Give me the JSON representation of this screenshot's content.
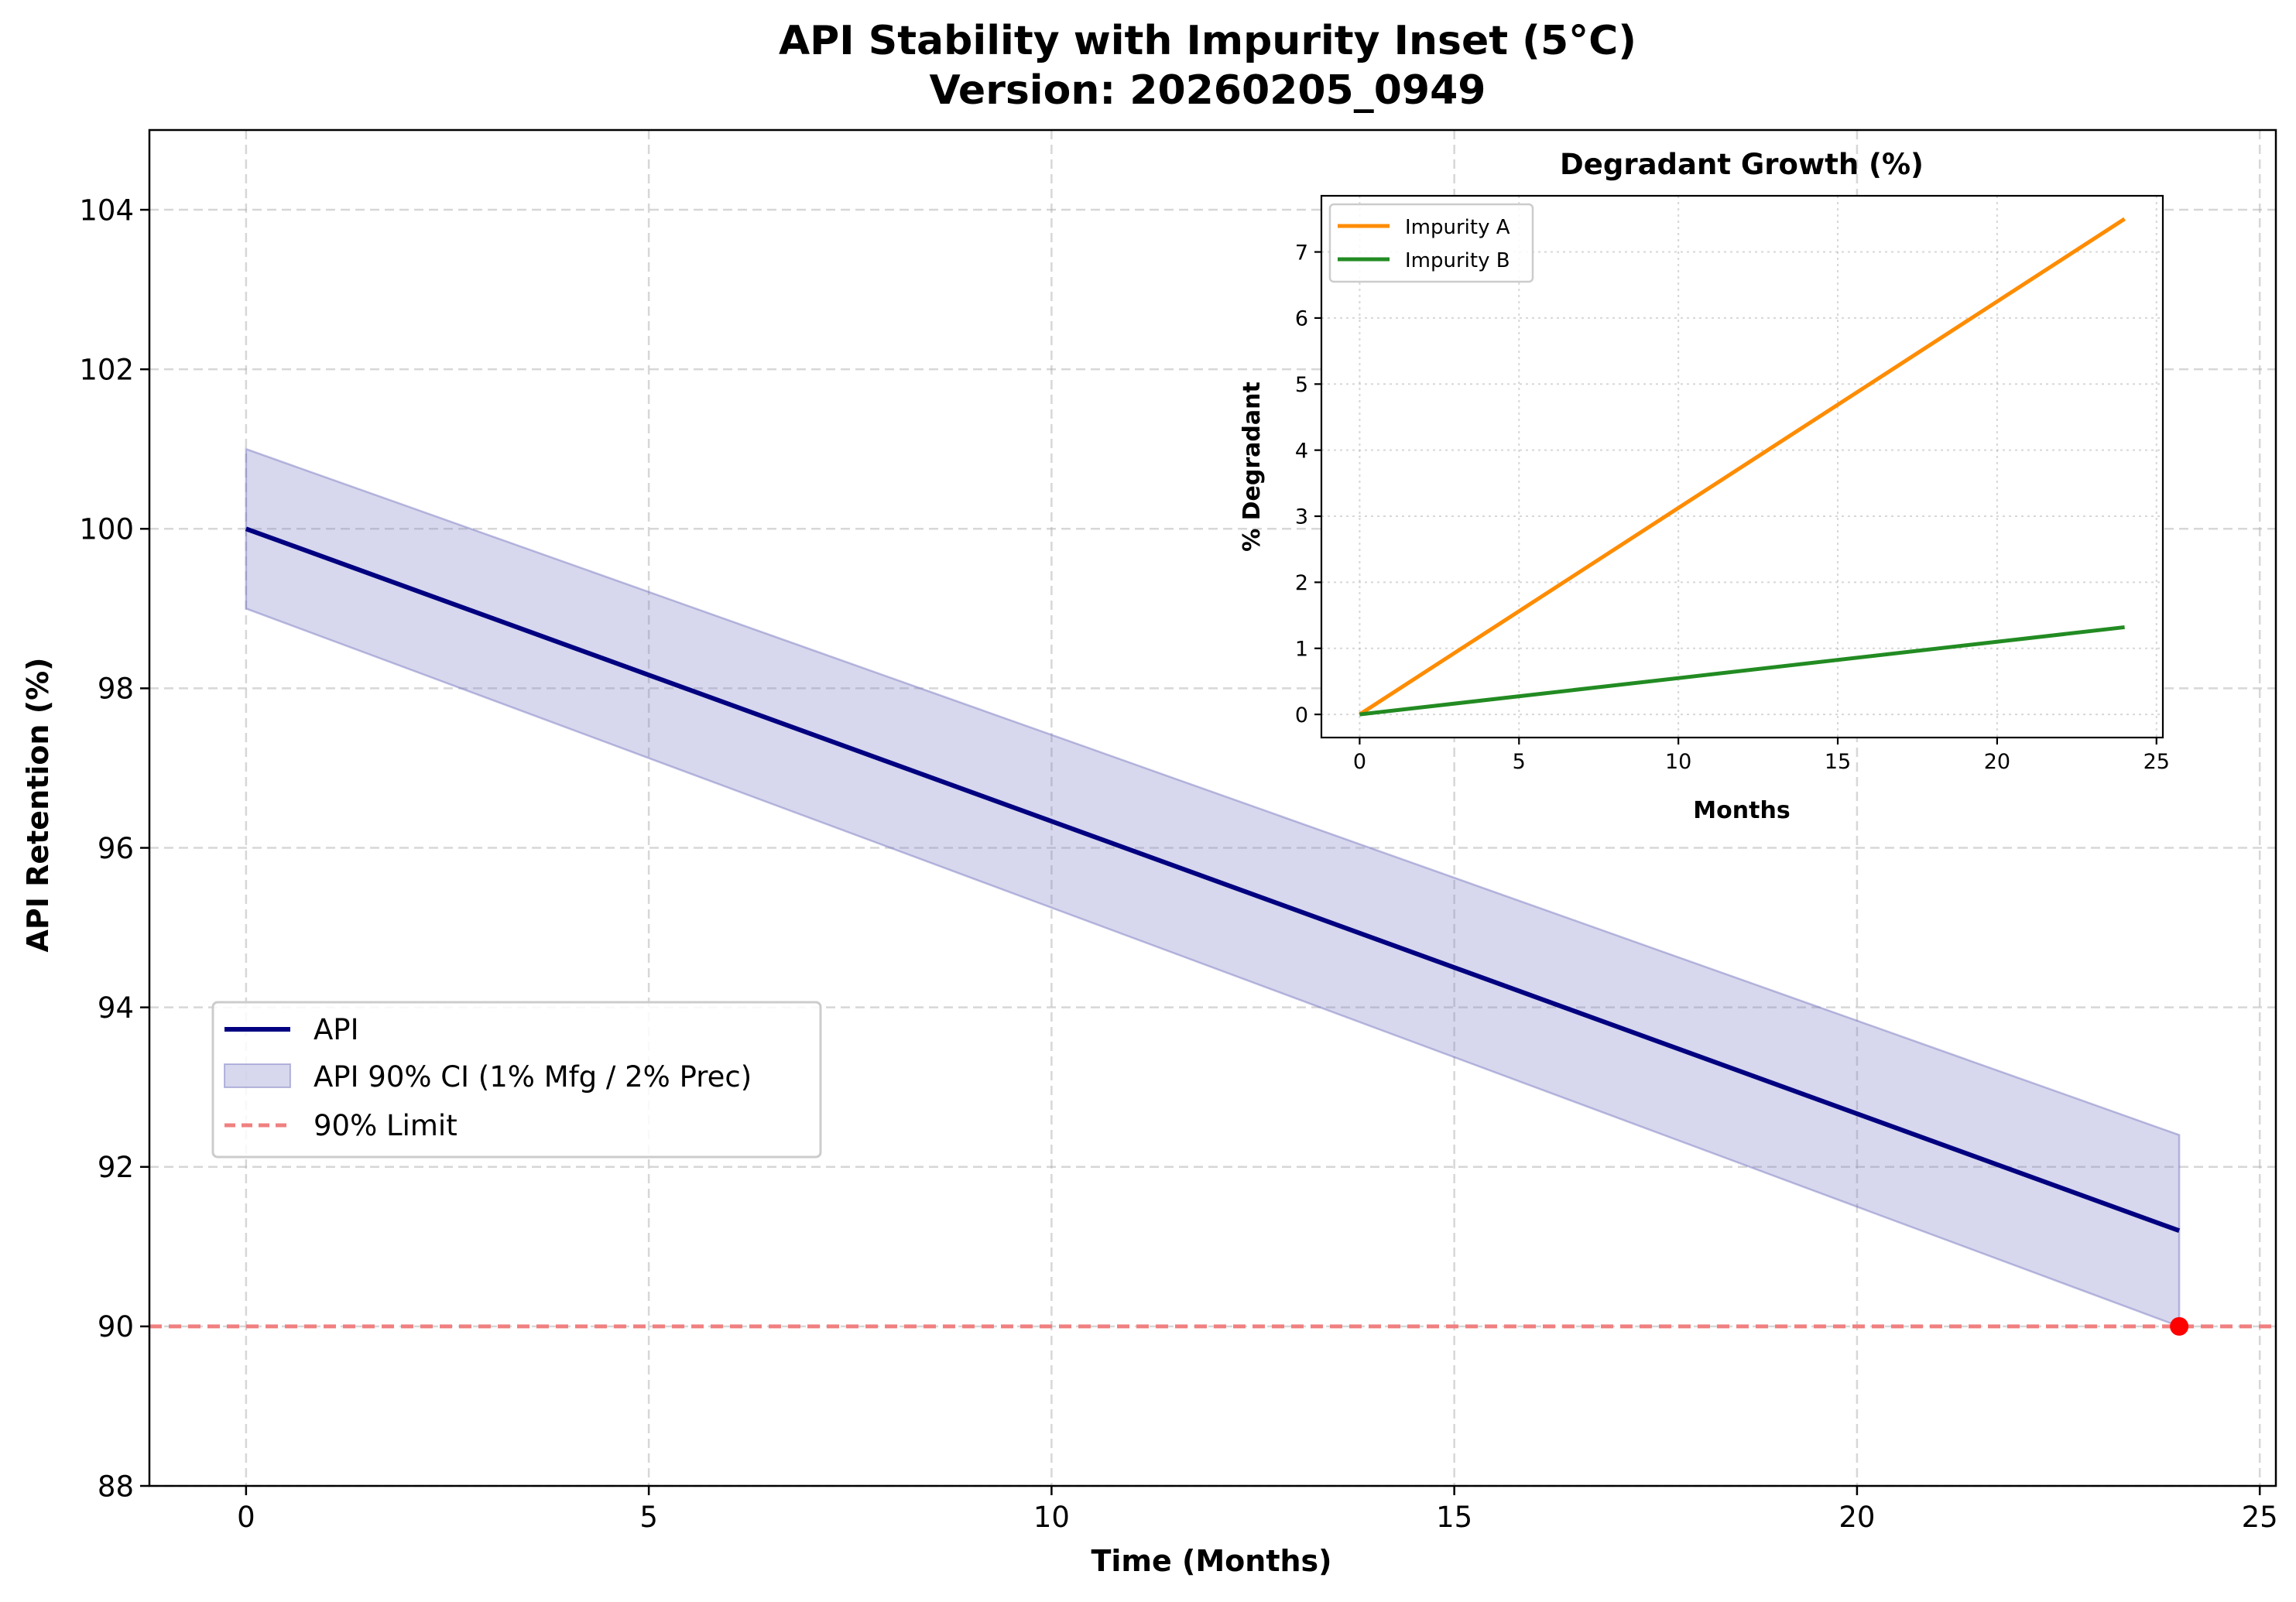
{
  "chart_data": [
    {
      "type": "line",
      "title_line1": "API Stability with Impurity Inset (5°C)",
      "title_line2": "Version: 20260205_0949",
      "xlabel": "Time (Months)",
      "ylabel": "API Retention (%)",
      "xlim": [
        -1.2,
        25.2
      ],
      "ylim": [
        88,
        105
      ],
      "xticks": [
        0,
        5,
        10,
        15,
        20,
        25
      ],
      "yticks": [
        88,
        90,
        92,
        94,
        96,
        98,
        100,
        102,
        104
      ],
      "grid": true,
      "legend_position": "center-left",
      "series": [
        {
          "name": "API",
          "color": "#000080",
          "x": [
            0,
            24
          ],
          "y": [
            100.0,
            91.2
          ]
        },
        {
          "name": "API 90% CI (1% Mfg / 2% Prec)",
          "color": "#7b7bc4",
          "x": [
            0,
            24
          ],
          "upper": [
            101.0,
            92.4
          ],
          "lower": [
            99.0,
            90.0
          ]
        },
        {
          "name": "90% Limit",
          "color": "#f08080",
          "value": 90
        }
      ],
      "markers": [
        {
          "x": 24,
          "y": 90,
          "color": "#ff0000"
        }
      ]
    },
    {
      "type": "line",
      "title": "Degradant Growth (%)",
      "xlabel": "Months",
      "ylabel": "% Degradant",
      "xlim": [
        -1.2,
        25.2
      ],
      "ylim": [
        -0.35,
        7.85
      ],
      "xticks": [
        0,
        5,
        10,
        15,
        20,
        25
      ],
      "yticks": [
        0,
        1,
        2,
        3,
        4,
        5,
        6,
        7
      ],
      "grid": true,
      "legend_position": "upper-left",
      "series": [
        {
          "name": "Impurity A",
          "color": "#ff8c00",
          "x": [
            0,
            24
          ],
          "y": [
            0,
            7.5
          ]
        },
        {
          "name": "Impurity B",
          "color": "#228b22",
          "x": [
            0,
            24
          ],
          "y": [
            0,
            1.32
          ]
        }
      ]
    }
  ]
}
